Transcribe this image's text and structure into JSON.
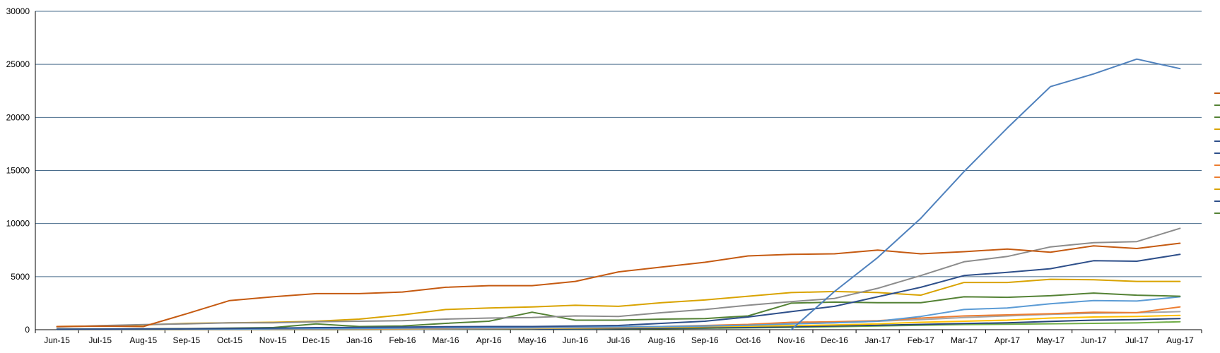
{
  "chart_data": {
    "type": "line",
    "title": "",
    "xlabel": "",
    "ylabel": "",
    "ylim": [
      0,
      30000
    ],
    "yticks": [
      0,
      5000,
      10000,
      15000,
      20000,
      25000,
      30000
    ],
    "grid": true,
    "legend": "right (markers only, labels not visible)",
    "categories": [
      "Jun-15",
      "Jul-15",
      "Aug-15",
      "Sep-15",
      "Oct-15",
      "Nov-15",
      "Dec-15",
      "Jan-16",
      "Feb-16",
      "Mar-16",
      "Apr-16",
      "May-16",
      "Jun-16",
      "Jul-16",
      "Aug-16",
      "Sep-16",
      "Oct-16",
      "Nov-16",
      "Dec-16",
      "Jan-17",
      "Feb-17",
      "Mar-17",
      "Apr-17",
      "May-17",
      "Jun-17",
      "Jul-17",
      "Aug-17"
    ],
    "series": [
      {
        "color": "#4f81bd",
        "values": [
          null,
          null,
          null,
          null,
          null,
          null,
          null,
          null,
          null,
          null,
          null,
          null,
          null,
          null,
          null,
          null,
          null,
          0,
          3600,
          6800,
          10500,
          14900,
          19000,
          22900,
          24100,
          25500,
          24600
        ]
      },
      {
        "color": "#c55a11",
        "values": [
          300,
          330,
          300,
          1500,
          2750,
          3100,
          3400,
          3400,
          3550,
          4000,
          4150,
          4150,
          4550,
          5450,
          5900,
          6350,
          6950,
          7100,
          7150,
          7500,
          7150,
          7350,
          7600,
          7300,
          7900,
          7650,
          8150
        ]
      },
      {
        "color": "#8c8c8c",
        "values": [
          250,
          380,
          480,
          550,
          650,
          650,
          750,
          800,
          850,
          1000,
          1100,
          1150,
          1300,
          1250,
          1600,
          1900,
          2300,
          2650,
          2950,
          3900,
          5100,
          6400,
          6900,
          7800,
          8200,
          8300,
          9550
        ]
      },
      {
        "color": "#2e4f8a",
        "values": [
          50,
          60,
          70,
          80,
          120,
          150,
          200,
          220,
          250,
          280,
          300,
          300,
          350,
          400,
          600,
          800,
          1200,
          1700,
          2200,
          3100,
          4000,
          5100,
          5400,
          5750,
          6500,
          6450,
          7100
        ]
      },
      {
        "color": "#d9a300",
        "values": [
          300,
          350,
          450,
          600,
          650,
          700,
          800,
          1000,
          1400,
          1900,
          2050,
          2150,
          2300,
          2200,
          2550,
          2800,
          3150,
          3500,
          3600,
          3500,
          3250,
          4450,
          4450,
          4750,
          4700,
          4550,
          4550
        ]
      },
      {
        "color": "#548235",
        "values": [
          50,
          60,
          80,
          100,
          150,
          200,
          550,
          300,
          350,
          600,
          800,
          1650,
          900,
          900,
          1000,
          1050,
          1300,
          2500,
          2600,
          2550,
          2550,
          3100,
          3050,
          3200,
          3450,
          3250,
          3150
        ]
      },
      {
        "color": "#5b9bd5",
        "values": [
          20,
          30,
          40,
          50,
          60,
          80,
          100,
          120,
          150,
          180,
          200,
          220,
          250,
          280,
          300,
          350,
          420,
          550,
          650,
          800,
          1250,
          1900,
          2050,
          2450,
          2750,
          2700,
          3100
        ]
      },
      {
        "color": "#ed7d31",
        "values": [
          10,
          20,
          30,
          40,
          50,
          60,
          80,
          100,
          120,
          150,
          180,
          200,
          220,
          250,
          300,
          400,
          500,
          700,
          750,
          850,
          1100,
          1300,
          1400,
          1500,
          1650,
          1600,
          2150
        ]
      },
      {
        "color": "#a5a5a5",
        "values": [
          10,
          20,
          25,
          30,
          40,
          50,
          60,
          70,
          80,
          100,
          120,
          150,
          180,
          220,
          280,
          350,
          450,
          550,
          650,
          800,
          950,
          1150,
          1300,
          1450,
          1550,
          1600,
          1700
        ]
      },
      {
        "color": "#ffc000",
        "values": [
          5,
          10,
          15,
          20,
          25,
          30,
          40,
          50,
          60,
          80,
          100,
          120,
          150,
          180,
          220,
          280,
          330,
          380,
          450,
          550,
          700,
          800,
          900,
          1100,
          1200,
          1250,
          1350
        ]
      },
      {
        "color": "#264478",
        "values": [
          5,
          8,
          10,
          12,
          15,
          18,
          20,
          25,
          30,
          40,
          50,
          60,
          80,
          100,
          130,
          170,
          220,
          280,
          350,
          420,
          500,
          580,
          650,
          780,
          900,
          950,
          1050
        ]
      },
      {
        "color": "#70ad47",
        "values": [
          5,
          6,
          8,
          10,
          12,
          14,
          16,
          20,
          25,
          30,
          40,
          50,
          60,
          80,
          100,
          130,
          170,
          220,
          280,
          350,
          420,
          480,
          520,
          560,
          600,
          640,
          750
        ]
      }
    ],
    "legend_markers": [
      "#c55a11",
      "#548235",
      "#548235",
      "#d9a300",
      "#2e4f8a",
      "#2e4f8a",
      "#ed7d31",
      "#ed7d31",
      "#d9a300",
      "#2e4f8a",
      "#548235"
    ]
  }
}
